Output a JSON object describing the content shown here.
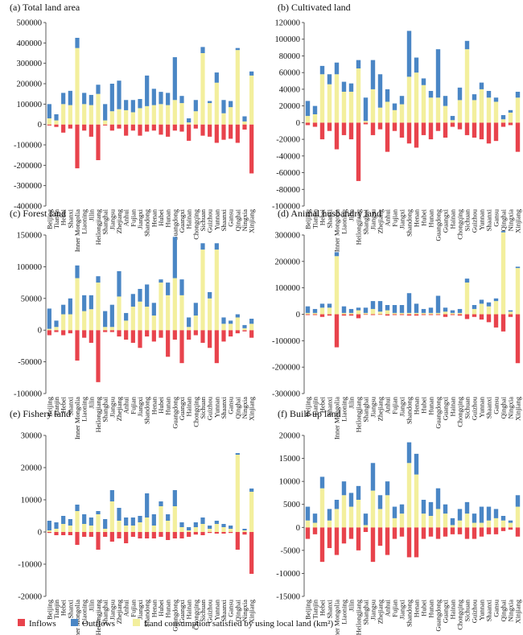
{
  "figure": {
    "legend": {
      "inflows": "Inflows",
      "outflows": "Outflows",
      "local": "Land consumption satisfied by using local land (km²)"
    },
    "colors": {
      "inflows": "#e8434c",
      "outflows": "#4a86c5",
      "local": "#f3ef9d"
    }
  },
  "chart_data": [
    {
      "type": "bar",
      "title": "(a) Total land area",
      "categories": [
        "Beijing",
        "Tianjin",
        "Hebei",
        "Shanxi",
        "Inner Mongolia",
        "Liaoning",
        "Jilin",
        "Heilongjiang",
        "Shanghai",
        "Jiangsu",
        "Zhejiang",
        "Anhui",
        "Fujian",
        "Jiangxi",
        "Shandong",
        "Henan",
        "Hubei",
        "Hunan",
        "Guangdong",
        "Guangxi",
        "Hainan",
        "Chongqing",
        "Sichuan",
        "Guizhou",
        "Yunnan",
        "Shaanxi",
        "Gansu",
        "Qinghai",
        "Ningxia",
        "Xinjiang"
      ],
      "series": [
        {
          "name": "Inflows",
          "values": [
            -5000,
            -12000,
            -40000,
            -20000,
            -215000,
            -30000,
            -60000,
            -175000,
            -5000,
            -30000,
            -20000,
            -55000,
            -30000,
            -55000,
            -35000,
            -30000,
            -50000,
            -60000,
            -30000,
            -35000,
            -80000,
            -20000,
            -55000,
            -60000,
            -90000,
            -75000,
            -70000,
            -90000,
            -25000,
            -240000
          ]
        },
        {
          "name": "Outflows",
          "values": [
            70000,
            30000,
            55000,
            70000,
            50000,
            55000,
            50000,
            45000,
            80000,
            135000,
            140000,
            50000,
            60000,
            45000,
            150000,
            80000,
            60000,
            60000,
            210000,
            35000,
            20000,
            55000,
            30000,
            10000,
            50000,
            65000,
            30000,
            10000,
            25000,
            20000
          ]
        },
        {
          "name": "Land consumption satisfied by using local land (km²)",
          "values": [
            30000,
            20000,
            100000,
            95000,
            375000,
            100000,
            95000,
            150000,
            20000,
            65000,
            75000,
            70000,
            60000,
            80000,
            90000,
            95000,
            100000,
            95000,
            120000,
            105000,
            10000,
            65000,
            350000,
            105000,
            205000,
            55000,
            85000,
            365000,
            15000,
            240000
          ]
        }
      ],
      "ylim": [
        -400000,
        500000
      ],
      "yticks": [
        -400000,
        -300000,
        -200000,
        -100000,
        0,
        100000,
        200000,
        300000,
        400000,
        500000
      ]
    },
    {
      "type": "bar",
      "title": "(b) Cultivated land",
      "categories": [
        "Beijing",
        "Tianjin",
        "Hebei",
        "Shanxi",
        "Inner Mongolia",
        "Liaoning",
        "Jilin",
        "Heilongjiang",
        "Shanghai",
        "Jiangsu",
        "Zhejiang",
        "Anhui",
        "Fujian",
        "Jiangxi",
        "Shandong",
        "Henan",
        "Hubei",
        "Hunan",
        "Guangdong",
        "Guangxi",
        "Hainan",
        "Chongqing",
        "Sichuan",
        "Guizhou",
        "Yunnan",
        "Shaanxi",
        "Gansu",
        "Qinghai",
        "Ningxia",
        "Xinjiang"
      ],
      "series": [
        {
          "name": "Inflows",
          "values": [
            -3000,
            -5000,
            -20000,
            -10000,
            -32000,
            -15000,
            -20000,
            -70000,
            -2000,
            -15000,
            -8000,
            -35000,
            -10000,
            -18000,
            -25000,
            -30000,
            -15000,
            -20000,
            -10000,
            -18000,
            -5000,
            -8000,
            -15000,
            -18000,
            -20000,
            -25000,
            -22000,
            -5000,
            -3000,
            -35000
          ]
        },
        {
          "name": "Outflows",
          "values": [
            18000,
            10000,
            10000,
            12000,
            14000,
            12000,
            10000,
            10000,
            28000,
            35000,
            40000,
            15000,
            8000,
            10000,
            55000,
            18000,
            8000,
            8000,
            58000,
            12000,
            5000,
            15000,
            10000,
            7000,
            8000,
            8000,
            5000,
            5000,
            3000,
            7000
          ]
        },
        {
          "name": "Land consumption satisfied by using local land (km²)",
          "values": [
            8000,
            10000,
            58000,
            46000,
            58000,
            37000,
            37000,
            65000,
            2000,
            40000,
            18000,
            25000,
            15000,
            22000,
            55000,
            60000,
            45000,
            30000,
            30000,
            20000,
            3000,
            27000,
            88000,
            27000,
            40000,
            30000,
            25000,
            4000,
            12000,
            30000
          ]
        }
      ],
      "ylim": [
        -100000,
        120000
      ],
      "yticks": [
        -100000,
        -80000,
        -60000,
        -40000,
        -20000,
        0,
        20000,
        40000,
        60000,
        80000,
        100000,
        120000
      ]
    },
    {
      "type": "bar",
      "title": "(c) Forest land",
      "categories": [
        "Beijing",
        "Tianjin",
        "Hebei",
        "Shanxi",
        "Inner Mongolia",
        "Liaoning",
        "Jilin",
        "Heilongjiang",
        "Shanghai",
        "Jiangsu",
        "Zhejiang",
        "Anhui",
        "Fujian",
        "Jiangxi",
        "Shandong",
        "Henan",
        "Hubei",
        "Hunan",
        "Guangdong",
        "Guangxi",
        "Hainan",
        "Chongqing",
        "Sichuan",
        "Guizhou",
        "Yunnan",
        "Shaanxi",
        "Gansu",
        "Qinghai",
        "Ningxia",
        "Xinjiang"
      ],
      "series": [
        {
          "name": "Inflows",
          "values": [
            -8000,
            -3000,
            -8000,
            -5000,
            -48000,
            -12000,
            -20000,
            -82000,
            -3000,
            -3000,
            -10000,
            -15000,
            -20000,
            -28000,
            -10000,
            -18000,
            -12000,
            -42000,
            -15000,
            -52000,
            -15000,
            -8000,
            -20000,
            -28000,
            -52000,
            -18000,
            -10000,
            -5000,
            -2000,
            -12000
          ]
        },
        {
          "name": "Outflows",
          "values": [
            32000,
            10000,
            15000,
            25000,
            20000,
            25000,
            22000,
            10000,
            25000,
            35000,
            40000,
            12000,
            20000,
            20000,
            35000,
            20000,
            5000,
            20000,
            65000,
            25000,
            15000,
            20000,
            10000,
            10000,
            10000,
            10000,
            5000,
            5000,
            5000,
            8000
          ]
        },
        {
          "name": "Land consumption satisfied by using local land (km²)",
          "values": [
            2000,
            5000,
            25000,
            25000,
            82000,
            30000,
            33000,
            75000,
            5000,
            5000,
            53000,
            15000,
            37000,
            45000,
            37000,
            23000,
            75000,
            55000,
            82000,
            55000,
            5000,
            23000,
            127000,
            50000,
            127000,
            10000,
            10000,
            20000,
            3000,
            10000
          ]
        }
      ],
      "ylim": [
        -100000,
        150000
      ],
      "yticks": [
        -100000,
        -50000,
        0,
        50000,
        100000,
        150000
      ]
    },
    {
      "type": "bar",
      "title": "(d) Animal husbandry land",
      "categories": [
        "Beijing",
        "Tianjin",
        "Hebei",
        "Shanxi",
        "Inner Mongolia",
        "Liaoning",
        "Jilin",
        "Heilongjiang",
        "Shanghai",
        "Jiangsu",
        "Zhejiang",
        "Anhui",
        "Fujian",
        "Jiangxi",
        "Shandong",
        "Henan",
        "Hubei",
        "Hunan",
        "Guangdong",
        "Guangxi",
        "Hainan",
        "Chongqing",
        "Sichuan",
        "Guizhou",
        "Yunnan",
        "Shaanxi",
        "Gansu",
        "Qinghai",
        "Ningxia",
        "Xinjiang"
      ],
      "series": [
        {
          "name": "Inflows",
          "values": [
            -3000,
            -3000,
            -10000,
            -5000,
            -125000,
            -5000,
            -5000,
            -15000,
            -2000,
            -3000,
            -2000,
            -5000,
            -3000,
            -3000,
            -5000,
            -5000,
            -3000,
            -3000,
            -3000,
            -10000,
            -3000,
            -5000,
            -18000,
            -10000,
            -20000,
            -30000,
            -50000,
            -65000,
            -10000,
            -185000
          ]
        },
        {
          "name": "Outflows",
          "values": [
            25000,
            15000,
            15000,
            15000,
            15000,
            25000,
            15000,
            10000,
            20000,
            30000,
            40000,
            20000,
            30000,
            30000,
            75000,
            35000,
            15000,
            20000,
            65000,
            15000,
            10000,
            15000,
            15000,
            15000,
            15000,
            15000,
            10000,
            5000,
            5000,
            5000
          ]
        },
        {
          "name": "Land consumption satisfied by using local land (km²)",
          "values": [
            5000,
            5000,
            25000,
            25000,
            220000,
            5000,
            5000,
            15000,
            5000,
            20000,
            10000,
            15000,
            5000,
            5000,
            5000,
            5000,
            5000,
            5000,
            5000,
            10000,
            5000,
            5000,
            120000,
            20000,
            40000,
            30000,
            50000,
            310000,
            10000,
            175000
          ]
        }
      ],
      "ylim": [
        -300000,
        300000
      ],
      "yticks": [
        -300000,
        -200000,
        -100000,
        0,
        100000,
        200000,
        300000
      ]
    },
    {
      "type": "bar",
      "title": "(e) Fishery land",
      "categories": [
        "Beijing",
        "Tianjin",
        "Hebei",
        "Shanxi",
        "Inner Mongolia",
        "Liaoning",
        "Jilin",
        "Heilongjiang",
        "Shanghai",
        "Jiangsu",
        "Zhejiang",
        "Anhui",
        "Fujian",
        "Jiangxi",
        "Shandong",
        "Henan",
        "Hubei",
        "Hunan",
        "Guangdong",
        "Guangxi",
        "Hainan",
        "Chongqing",
        "Sichuan",
        "Guizhou",
        "Yunnan",
        "Shaanxi",
        "Gansu",
        "Qinghai",
        "Ningxia",
        "Xinjiang"
      ],
      "series": [
        {
          "name": "Inflows",
          "values": [
            -300,
            -1000,
            -1000,
            -1000,
            -4000,
            -1500,
            -1500,
            -5500,
            -1500,
            -3000,
            -2000,
            -3500,
            -1500,
            -2000,
            -2000,
            -2000,
            -1500,
            -2500,
            -2000,
            -2000,
            -1500,
            -800,
            -1000,
            -300,
            -500,
            -500,
            -300,
            -5500,
            -800,
            -13000
          ]
        },
        {
          "name": "Outflows",
          "values": [
            3000,
            2000,
            2500,
            2000,
            2000,
            3000,
            2500,
            1000,
            3000,
            3500,
            4000,
            2500,
            2500,
            2000,
            7500,
            3500,
            1500,
            2000,
            5000,
            1500,
            1000,
            1500,
            2000,
            1000,
            1000,
            1000,
            1000,
            500,
            500,
            1000
          ]
        },
        {
          "name": "Land consumption satisfied by using local land (km²)",
          "values": [
            500,
            1000,
            2500,
            2000,
            6500,
            2500,
            2000,
            5500,
            1000,
            9500,
            3500,
            2000,
            2000,
            3000,
            4500,
            2000,
            8000,
            3500,
            8000,
            1500,
            500,
            1500,
            2500,
            1000,
            2500,
            1500,
            1000,
            24000,
            500,
            12500
          ]
        }
      ],
      "ylim": [
        -20000,
        30000
      ],
      "yticks": [
        -20000,
        -10000,
        0,
        10000,
        20000,
        30000
      ]
    },
    {
      "type": "bar",
      "title": "(f) Built-up land",
      "categories": [
        "Beijing",
        "Tianjin",
        "Hebei",
        "Shanxi",
        "Inner Mongolia",
        "Liaoning",
        "Jilin",
        "Heilongjiang",
        "Shanghai",
        "Jiangsu",
        "Zhejiang",
        "Anhui",
        "Fujian",
        "Jiangxi",
        "Shandong",
        "Henan",
        "Hubei",
        "Hunan",
        "Guangdong",
        "Guangxi",
        "Hainan",
        "Chongqing",
        "Sichuan",
        "Guizhou",
        "Yunnan",
        "Shaanxi",
        "Gansu",
        "Qinghai",
        "Ningxia",
        "Xinjiang"
      ],
      "series": [
        {
          "name": "Inflows",
          "values": [
            -2500,
            -1500,
            -7500,
            -4500,
            -6000,
            -3500,
            -2500,
            -5000,
            -1000,
            -7500,
            -4000,
            -6000,
            -2500,
            -2000,
            -6500,
            -6500,
            -2500,
            -2000,
            -2500,
            -2000,
            -1500,
            -1500,
            -2500,
            -2500,
            -2000,
            -1500,
            -1500,
            -800,
            -500,
            -2000
          ]
        },
        {
          "name": "Outflows",
          "values": [
            3000,
            2000,
            2500,
            2500,
            2000,
            3000,
            3000,
            3000,
            2500,
            6000,
            3000,
            3000,
            2500,
            2000,
            4500,
            4500,
            3000,
            3000,
            4500,
            2000,
            1500,
            2500,
            2500,
            2000,
            3500,
            3000,
            2000,
            1000,
            500,
            2500
          ]
        },
        {
          "name": "Land consumption satisfied by using local land (km²)",
          "values": [
            1500,
            1000,
            8500,
            1500,
            4000,
            7000,
            4500,
            6000,
            500,
            8000,
            4000,
            7000,
            2000,
            3000,
            14000,
            11500,
            3000,
            2500,
            4000,
            3000,
            500,
            1500,
            3000,
            1000,
            1000,
            1500,
            2000,
            1500,
            1000,
            4500
          ]
        }
      ],
      "ylim": [
        -15000,
        20000
      ],
      "yticks": [
        -15000,
        -10000,
        -5000,
        0,
        5000,
        10000,
        15000,
        20000
      ]
    }
  ]
}
